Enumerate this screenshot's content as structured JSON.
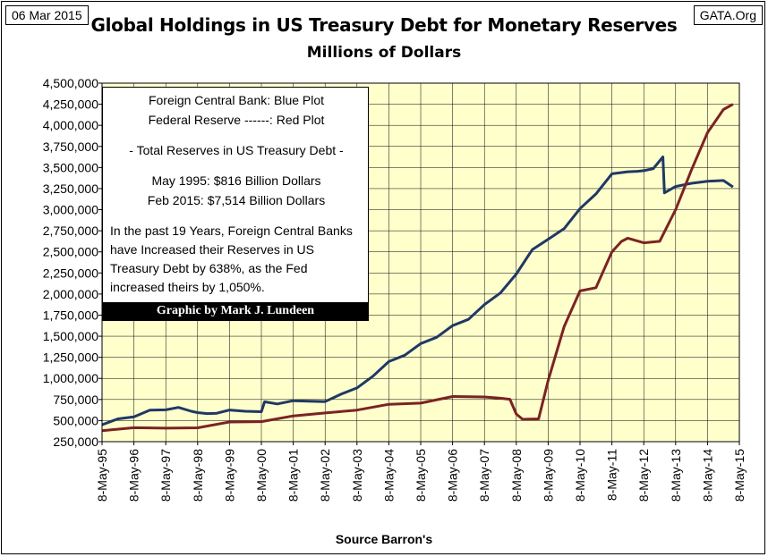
{
  "header": {
    "date": "06 Mar 2015",
    "site": "GATA.Org"
  },
  "chart_data": {
    "type": "line",
    "title": "Global Holdings in US Treasury Debt for Monetary Reserves",
    "subtitle": "Millions of Dollars",
    "xlabel": "Source Barron's",
    "ylabel": "",
    "ylim": [
      250000,
      4500000
    ],
    "y_ticks": [
      250000,
      500000,
      750000,
      1000000,
      1250000,
      1500000,
      1750000,
      2000000,
      2250000,
      2500000,
      2750000,
      3000000,
      3250000,
      3500000,
      3750000,
      4000000,
      4250000,
      4500000
    ],
    "y_tick_labels": [
      "250,000",
      "500,000",
      "750,000",
      "1,000,000",
      "1,250,000",
      "1,500,000",
      "1,750,000",
      "2,000,000",
      "2,250,000",
      "2,500,000",
      "2,750,000",
      "3,000,000",
      "3,250,000",
      "3,500,000",
      "3,750,000",
      "4,000,000",
      "4,250,000",
      "4,500,000"
    ],
    "x_range": [
      1995,
      2015
    ],
    "x_tick_labels": [
      "8-May-95",
      "8-May-96",
      "8-May-97",
      "8-May-98",
      "8-May-99",
      "8-May-00",
      "8-May-01",
      "8-May-02",
      "8-May-03",
      "8-May-04",
      "8-May-05",
      "8-May-06",
      "8-May-07",
      "8-May-08",
      "8-May-09",
      "8-May-10",
      "8-May-11",
      "8-May-12",
      "8-May-13",
      "8-May-14",
      "8-May-15"
    ],
    "plot_background": "#ffffcc",
    "grid": true,
    "series": [
      {
        "name": "Foreign Central Bank",
        "color": "#1f3864",
        "x": [
          1995.0,
          1995.5,
          1996.0,
          1996.5,
          1997.0,
          1997.4,
          1997.8,
          1998.0,
          1998.3,
          1998.6,
          1999.0,
          1999.5,
          2000.0,
          2000.1,
          2000.5,
          2001.0,
          2001.5,
          2002.0,
          2002.5,
          2003.0,
          2003.5,
          2004.0,
          2004.5,
          2005.0,
          2005.5,
          2006.0,
          2006.5,
          2007.0,
          2007.5,
          2008.0,
          2008.5,
          2009.0,
          2009.5,
          2010.0,
          2010.5,
          2011.0,
          2011.5,
          2011.8,
          2012.0,
          2012.3,
          2012.6,
          2012.65,
          2013.0,
          2013.5,
          2014.0,
          2014.5,
          2014.8
        ],
        "y": [
          450000,
          520000,
          570000,
          610000,
          640000,
          630000,
          610000,
          620000,
          570000,
          600000,
          600000,
          610000,
          630000,
          710000,
          710000,
          710000,
          730000,
          750000,
          800000,
          900000,
          1000000,
          1200000,
          1300000,
          1400000,
          1500000,
          1600000,
          1700000,
          1900000,
          2000000,
          2250000,
          2500000,
          2650000,
          2800000,
          3000000,
          3200000,
          3400000,
          3450000,
          3480000,
          3450000,
          3500000,
          3600000,
          3200000,
          3300000,
          3300000,
          3350000,
          3320000,
          3270000
        ]
      },
      {
        "name": "Federal Reserve",
        "color": "#7b2323",
        "x": [
          1995.0,
          1996.0,
          1997.0,
          1998.0,
          1999.0,
          2000.0,
          2001.0,
          2002.0,
          2003.0,
          2004.0,
          2005.0,
          2006.0,
          2007.0,
          2007.5,
          2007.8,
          2008.0,
          2008.2,
          2008.7,
          2009.0,
          2009.5,
          2010.0,
          2010.5,
          2011.0,
          2011.3,
          2011.5,
          2012.0,
          2012.5,
          2013.0,
          2013.5,
          2014.0,
          2014.5,
          2014.8
        ],
        "y": [
          380000,
          390000,
          410000,
          440000,
          470000,
          500000,
          530000,
          590000,
          650000,
          680000,
          720000,
          760000,
          780000,
          790000,
          740000,
          590000,
          490000,
          520000,
          1000000,
          1600000,
          2050000,
          2050000,
          2500000,
          2650000,
          2650000,
          2620000,
          2600000,
          3000000,
          3500000,
          3900000,
          4200000,
          4250000
        ]
      }
    ]
  },
  "notes": {
    "line1": "Foreign Central Bank: Blue Plot",
    "line2": "Federal Reserve ------: Red Plot",
    "line3": "- Total Reserves in US Treasury Debt -",
    "line4": "May 1995:   $816 Billion Dollars",
    "line5": "Feb 2015: $7,514 Billion Dollars",
    "paragraph": "In the past 19 Years, Foreign Central Banks have Increased their Reserves in US Treasury Debt by 638%, as the Fed increased theirs by 1,050%.",
    "credit": "Graphic by Mark J. Lundeen"
  }
}
